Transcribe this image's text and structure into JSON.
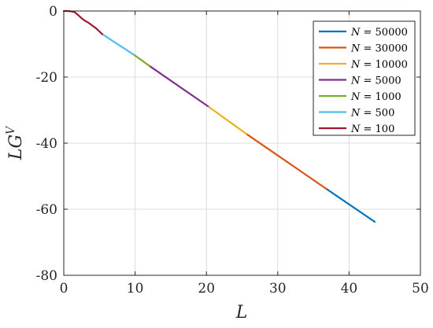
{
  "chart_data": {
    "type": "line",
    "title": "",
    "xlabel": "L",
    "ylabel_main": "LG",
    "ylabel_sup": "V",
    "xlim": [
      0,
      50
    ],
    "ylim": [
      -80,
      0
    ],
    "xticks": [
      0,
      10,
      20,
      30,
      40,
      50
    ],
    "yticks": [
      0,
      -20,
      -40,
      -60,
      -80
    ],
    "xtick_labels": [
      "0",
      "10",
      "20",
      "30",
      "40",
      "50"
    ],
    "ytick_labels": [
      "0",
      "-20",
      "-40",
      "-60",
      "-80"
    ],
    "grid": true,
    "legend_position": "top-right",
    "series": [
      {
        "name": "N = 50000",
        "color": "#0072BD",
        "x": [
          36.8,
          43.6
        ],
        "y": [
          -53.8,
          -63.8
        ]
      },
      {
        "name": "N = 30000",
        "color": "#D95319",
        "x": [
          25.6,
          36.8
        ],
        "y": [
          -37.2,
          -53.8
        ]
      },
      {
        "name": "N = 10000",
        "color": "#EDB120",
        "x": [
          20.2,
          25.6
        ],
        "y": [
          -28.8,
          -37.2
        ]
      },
      {
        "name": "N = 5000",
        "color": "#7E2F8E",
        "x": [
          12.0,
          20.2
        ],
        "y": [
          -16.6,
          -28.8
        ]
      },
      {
        "name": "N = 1000",
        "color": "#77AC30",
        "x": [
          9.8,
          12.0
        ],
        "y": [
          -13.2,
          -16.6
        ]
      },
      {
        "name": "N = 500",
        "color": "#4DBEEE",
        "x": [
          5.4,
          9.8
        ],
        "y": [
          -7.0,
          -13.2
        ]
      },
      {
        "name": "N = 100",
        "color": "#A2142F",
        "x": [
          0,
          0.5,
          1.0,
          1.5,
          2.0,
          2.5,
          3.0,
          3.5,
          4.0,
          4.5,
          5.0,
          5.4
        ],
        "y": [
          0,
          0,
          -0.1,
          -0.3,
          -1.2,
          -2.2,
          -3.0,
          -3.6,
          -4.4,
          -5.2,
          -6.2,
          -7.0
        ]
      }
    ]
  }
}
